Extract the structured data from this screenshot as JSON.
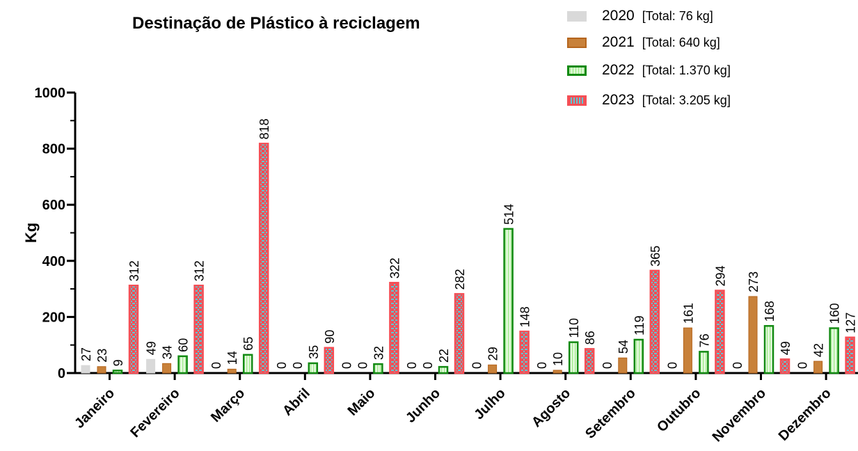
{
  "chart_data": {
    "type": "bar",
    "title": "Destinação de Plástico à reciclagem",
    "ylabel": "Kg",
    "xlabel": "",
    "ylim": [
      0,
      1000
    ],
    "yticks": [
      0,
      200,
      400,
      600,
      800,
      1000
    ],
    "grid": false,
    "legend_position": "top-right",
    "categories": [
      "Janeiro",
      "Fevereiro",
      "Março",
      "Abril",
      "Maio",
      "Junho",
      "Julho",
      "Agosto",
      "Setembro",
      "Outubro",
      "Novembro",
      "Dezembro"
    ],
    "series": [
      {
        "name": "2020",
        "total_label": "[Total:  76 kg]",
        "fill": "#d9d9d9",
        "stroke": "#d9d9d9",
        "pattern": "solid",
        "values": [
          27,
          49,
          0,
          0,
          0,
          0,
          0,
          0,
          0,
          0,
          0,
          0
        ]
      },
      {
        "name": "2021",
        "total_label": "[Total: 640 kg]",
        "fill": "#c8813a",
        "stroke": "#b5651d",
        "pattern": "solid",
        "values": [
          23,
          34,
          14,
          0,
          0,
          0,
          29,
          10,
          54,
          161,
          273,
          42
        ]
      },
      {
        "name": "2022",
        "total_label": "[Total: 1.370 kg]",
        "fill": "#b8f0a8",
        "stroke": "#138a13",
        "pattern": "stripes",
        "values": [
          9,
          60,
          65,
          35,
          32,
          22,
          514,
          110,
          119,
          76,
          168,
          160
        ]
      },
      {
        "name": "2023",
        "total_label": "[Total: 3.205 kg]",
        "fill": "#f44f56",
        "stroke": "#f44f56",
        "pattern": "checker",
        "values": [
          312,
          312,
          818,
          90,
          322,
          282,
          148,
          86,
          365,
          294,
          49,
          127
        ]
      }
    ],
    "data_labels": [
      [
        "27",
        "49",
        "0",
        "0",
        "0",
        "0",
        "0",
        "0",
        "0",
        "0",
        "0",
        "0"
      ],
      [
        "23",
        "34",
        "14",
        "0",
        "0",
        "0",
        "29",
        "10",
        "54",
        "161",
        "273",
        "42"
      ],
      [
        "9",
        "60",
        "65",
        "35",
        "32",
        "22",
        "514",
        "110",
        "119",
        "76",
        "168",
        "160"
      ],
      [
        "312",
        "312",
        "818",
        "90",
        "322",
        "282",
        "148",
        "86",
        "365",
        "294",
        "49",
        "127"
      ]
    ]
  }
}
